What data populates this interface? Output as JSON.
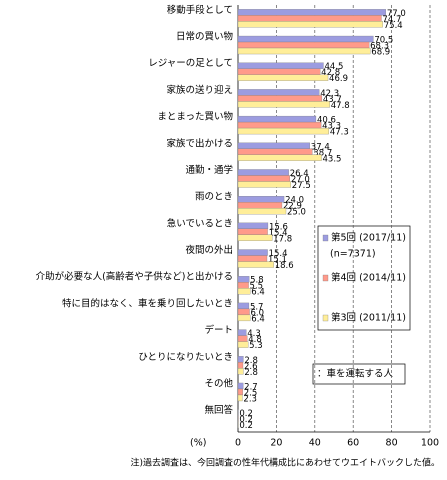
{
  "chart_data": {
    "type": "bar",
    "orientation": "horizontal",
    "categories": [
      "移動手段として",
      "日常の買い物",
      "レジャーの足として",
      "家族の送り迎え",
      "まとまった買い物",
      "家族で出かける",
      "通勤・通学",
      "雨のとき",
      "急いでいるとき",
      "夜間の外出",
      "介助が必要な人(高齢者や子供など)と出かける",
      "特に目的はなく、車を乗り回したいとき",
      "デート",
      "ひとりになりたいとき",
      "その他",
      "無回答"
    ],
    "series": [
      {
        "name": "第5回 (2017/11)",
        "color": "#9c9ce0",
        "values": [
          77.0,
          70.5,
          44.5,
          42.3,
          40.6,
          37.4,
          26.4,
          24.0,
          15.6,
          15.4,
          5.8,
          5.7,
          4.3,
          2.8,
          2.7,
          0.2
        ],
        "value_labels": [
          "77.0",
          "70.5",
          "44.5",
          "42.3",
          "40.6",
          "37.4",
          "26.4",
          "24.0",
          "15.6",
          "15.4",
          "5.8",
          "5.7",
          "4.3",
          "2.8",
          "2.7",
          "0.2"
        ]
      },
      {
        "name": "第4回 (2014/11)",
        "color": "#ff9a8a",
        "values": [
          74.7,
          68.3,
          42.8,
          43.7,
          43.3,
          38.7,
          27.0,
          22.9,
          15.4,
          15.1,
          5.5,
          6.0,
          4.8,
          2.6,
          2.5,
          0.2
        ],
        "value_labels": [
          "74.7",
          "68.3",
          "42.8",
          "43.7",
          "43.3",
          "38.7",
          "27.0",
          "22.9",
          "15.4",
          "15.1",
          "5.5",
          "6.0",
          "4.8",
          "2.6",
          "2.5",
          "0.2"
        ]
      },
      {
        "name": "第3回 (2011/11)",
        "color": "#ffee99",
        "values": [
          75.4,
          68.9,
          46.9,
          47.8,
          47.3,
          43.5,
          27.5,
          25.0,
          17.8,
          18.6,
          6.4,
          6.4,
          5.3,
          2.8,
          2.3,
          0.2
        ],
        "value_labels": [
          "75.4",
          "68.9",
          "46.9",
          "47.8",
          "47.3",
          "43.5",
          "27.5",
          "25.0",
          "17.8",
          "18.6",
          "6.4",
          "6.4",
          "5.3",
          "2.8",
          "2.3",
          "0.2"
        ]
      }
    ],
    "legend_note": "(n=7371)",
    "annotation": "：車を運転する人",
    "xlabel": "(%)",
    "footnote": "注)過去調査は、今回調査の性年代構成比にあわせてウエイトバックした値。",
    "xlim": [
      0,
      100
    ],
    "xticks": [
      0,
      20,
      40,
      60,
      80,
      100
    ],
    "grid": true
  }
}
